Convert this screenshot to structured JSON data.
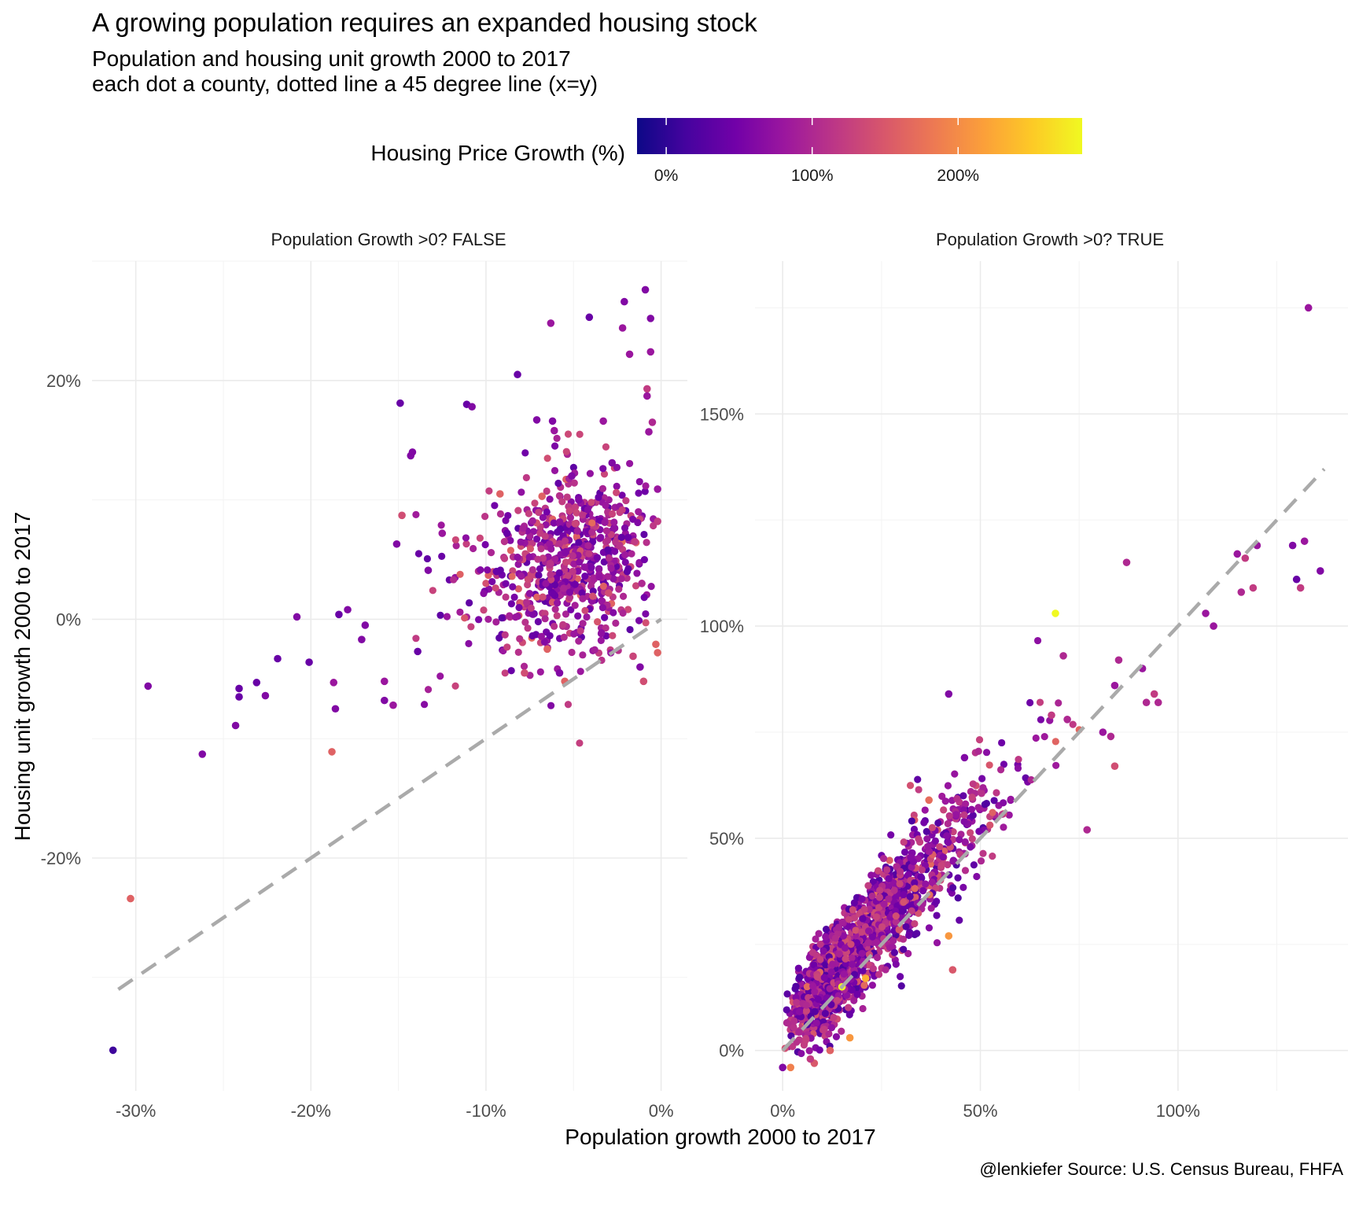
{
  "title": "A growing population requires an expanded housing stock",
  "subtitle_line1": "Population and housing unit growth 2000 to 2017",
  "subtitle_line2": "each dot a county, dotted line a 45 degree line (x=y)",
  "caption": "@lenkiefer Source: U.S. Census Bureau, FHFA",
  "legend": {
    "title": "Housing Price Growth (%)",
    "ticks": [
      "0%",
      "100%",
      "200%"
    ],
    "tick_values": [
      0,
      100,
      200
    ],
    "range": [
      -20,
      285
    ],
    "colormap": "plasma",
    "stops": [
      "#0d0887",
      "#46039f",
      "#7201a8",
      "#9c179e",
      "#bd3786",
      "#d8576b",
      "#ed7953",
      "#fb9f3a",
      "#fdca26",
      "#f0f921"
    ]
  },
  "chart_data": [
    {
      "type": "scatter",
      "panel": "Population Growth >0? FALSE",
      "xlabel": "Population growth 2000 to 2017",
      "ylabel": "Housing unit growth 2000 to 2017",
      "xlim": [
        -0.325,
        0.015
      ],
      "ylim": [
        -0.395,
        0.3
      ],
      "x_ticks": [
        -0.3,
        -0.2,
        -0.1,
        0.0
      ],
      "x_tick_labels": [
        "-30%",
        "-20%",
        "-10%",
        "0%"
      ],
      "y_ticks": [
        -0.2,
        0.0,
        0.2
      ],
      "y_tick_labels": [
        "-20%",
        "0%",
        "20%"
      ],
      "reference_line": {
        "label": "x=y",
        "from": [
          -0.31,
          -0.31
        ],
        "to": [
          0.0,
          0.0
        ]
      },
      "points": [
        {
          "x": -0.313,
          "y": -0.361,
          "c": 10
        },
        {
          "x": -0.303,
          "y": -0.234,
          "c": 160
        },
        {
          "x": -0.293,
          "y": -0.056,
          "c": 60
        },
        {
          "x": -0.262,
          "y": -0.113,
          "c": 60
        },
        {
          "x": -0.243,
          "y": -0.089,
          "c": 60
        },
        {
          "x": -0.241,
          "y": -0.065,
          "c": 40
        },
        {
          "x": -0.241,
          "y": -0.058,
          "c": 40
        },
        {
          "x": -0.231,
          "y": -0.053,
          "c": 40
        },
        {
          "x": -0.226,
          "y": -0.064,
          "c": 60
        },
        {
          "x": -0.219,
          "y": -0.033,
          "c": 40
        },
        {
          "x": -0.208,
          "y": 0.002,
          "c": 60
        },
        {
          "x": -0.201,
          "y": -0.036,
          "c": 40
        },
        {
          "x": -0.188,
          "y": -0.111,
          "c": 160
        },
        {
          "x": -0.187,
          "y": -0.053,
          "c": 80
        },
        {
          "x": -0.186,
          "y": -0.075,
          "c": 60
        },
        {
          "x": -0.184,
          "y": 0.004,
          "c": 40
        },
        {
          "x": -0.179,
          "y": 0.008,
          "c": 60
        },
        {
          "x": -0.171,
          "y": -0.017,
          "c": 60
        },
        {
          "x": -0.169,
          "y": -0.005,
          "c": 60
        },
        {
          "x": -0.158,
          "y": -0.068,
          "c": 60
        },
        {
          "x": -0.158,
          "y": -0.052,
          "c": 80
        },
        {
          "x": -0.153,
          "y": -0.072,
          "c": 80
        },
        {
          "x": -0.151,
          "y": 0.063,
          "c": 60
        },
        {
          "x": -0.149,
          "y": 0.181,
          "c": 40
        },
        {
          "x": -0.148,
          "y": 0.087,
          "c": 140
        },
        {
          "x": -0.143,
          "y": 0.137,
          "c": 60
        },
        {
          "x": -0.142,
          "y": 0.14,
          "c": 60
        },
        {
          "x": -0.139,
          "y": -0.027,
          "c": 40
        },
        {
          "x": -0.133,
          "y": 0.041,
          "c": 60
        },
        {
          "x": -0.125,
          "y": 0.072,
          "c": 80
        },
        {
          "x": -0.111,
          "y": 0.18,
          "c": 40
        },
        {
          "x": -0.108,
          "y": 0.178,
          "c": 60
        },
        {
          "x": -0.094,
          "y": 0.04,
          "c": 40
        },
        {
          "x": -0.092,
          "y": 0.105,
          "c": 160
        },
        {
          "x": -0.088,
          "y": 0.072,
          "c": 40
        },
        {
          "x": -0.082,
          "y": 0.205,
          "c": 40
        },
        {
          "x": -0.071,
          "y": 0.167,
          "c": 60
        },
        {
          "x": -0.068,
          "y": 0.103,
          "c": 160
        },
        {
          "x": -0.063,
          "y": 0.248,
          "c": 80
        },
        {
          "x": -0.062,
          "y": 0.166,
          "c": 60
        },
        {
          "x": -0.061,
          "y": 0.158,
          "c": 80
        },
        {
          "x": -0.051,
          "y": 0.12,
          "c": 60
        },
        {
          "x": -0.049,
          "y": 0.08,
          "c": 130
        },
        {
          "x": -0.047,
          "y": 0.1,
          "c": 60
        },
        {
          "x": -0.041,
          "y": 0.253,
          "c": 40
        },
        {
          "x": -0.033,
          "y": 0.166,
          "c": 80
        },
        {
          "x": -0.028,
          "y": 0.131,
          "c": 60
        },
        {
          "x": -0.021,
          "y": 0.266,
          "c": 60
        },
        {
          "x": -0.022,
          "y": 0.244,
          "c": 80
        },
        {
          "x": -0.018,
          "y": 0.222,
          "c": 80
        },
        {
          "x": -0.015,
          "y": 0.065,
          "c": 120
        },
        {
          "x": -0.012,
          "y": -0.04,
          "c": 60
        },
        {
          "x": -0.011,
          "y": 0.03,
          "c": 100
        },
        {
          "x": -0.009,
          "y": 0.276,
          "c": 60
        },
        {
          "x": -0.008,
          "y": 0.193,
          "c": 120
        },
        {
          "x": -0.008,
          "y": 0.187,
          "c": 80
        },
        {
          "x": -0.007,
          "y": 0.157,
          "c": 80
        },
        {
          "x": -0.006,
          "y": 0.252,
          "c": 60
        },
        {
          "x": -0.006,
          "y": 0.224,
          "c": 80
        },
        {
          "x": -0.005,
          "y": 0.165,
          "c": 100
        },
        {
          "x": -0.002,
          "y": 0.109,
          "c": 80
        },
        {
          "x": -0.002,
          "y": 0.082,
          "c": 120
        },
        {
          "x": -0.003,
          "y": -0.021,
          "c": 160
        },
        {
          "x": -0.002,
          "y": -0.028,
          "c": 160
        },
        {
          "x": -0.01,
          "y": -0.052,
          "c": 140
        },
        {
          "x": -0.016,
          "y": -0.031,
          "c": 130
        },
        {
          "x": -0.03,
          "y": 0.022,
          "c": 140
        },
        {
          "x": -0.058,
          "y": -0.045,
          "c": 60
        },
        {
          "x": -0.055,
          "y": -0.052,
          "c": 160
        },
        {
          "x": -0.078,
          "y": -0.045,
          "c": 140
        },
        {
          "x": -0.065,
          "y": -0.025,
          "c": 160
        }
      ],
      "cluster": {
        "x_range": [
          -0.14,
          -0.001
        ],
        "y_range": [
          -0.05,
          0.15
        ],
        "density_peak": [
          -0.02,
          0.05
        ],
        "count": 700,
        "color_range": [
          30,
          170
        ]
      }
    },
    {
      "type": "scatter",
      "panel": "Population Growth >0? TRUE",
      "xlabel": "Population growth 2000 to 2017",
      "ylabel": "Housing unit growth 2000 to 2017",
      "xlim": [
        -0.07,
        1.43
      ],
      "ylim": [
        -0.095,
        1.86
      ],
      "x_ticks": [
        0.0,
        0.5,
        1.0
      ],
      "x_tick_labels": [
        "0%",
        "50%",
        "100%"
      ],
      "y_ticks": [
        0.0,
        0.5,
        1.0,
        1.5
      ],
      "y_tick_labels": [
        "0%",
        "50%",
        "100%",
        "150%"
      ],
      "reference_line": {
        "label": "x=y",
        "from": [
          0.0,
          0.0
        ],
        "to": [
          1.37,
          1.37
        ]
      },
      "points": [
        {
          "x": 1.33,
          "y": 1.75,
          "c": 80
        },
        {
          "x": 1.36,
          "y": 1.13,
          "c": 60
        },
        {
          "x": 1.32,
          "y": 1.2,
          "c": 80
        },
        {
          "x": 1.29,
          "y": 1.19,
          "c": 60
        },
        {
          "x": 1.3,
          "y": 1.11,
          "c": 40
        },
        {
          "x": 1.31,
          "y": 1.09,
          "c": 120
        },
        {
          "x": 1.2,
          "y": 1.19,
          "c": 80
        },
        {
          "x": 1.17,
          "y": 1.16,
          "c": 120
        },
        {
          "x": 1.15,
          "y": 1.17,
          "c": 80
        },
        {
          "x": 1.16,
          "y": 1.08,
          "c": 100
        },
        {
          "x": 1.19,
          "y": 1.09,
          "c": 120
        },
        {
          "x": 1.07,
          "y": 1.03,
          "c": 80
        },
        {
          "x": 1.09,
          "y": 1.0,
          "c": 80
        },
        {
          "x": 0.87,
          "y": 1.15,
          "c": 100
        },
        {
          "x": 0.69,
          "y": 1.03,
          "c": 285
        },
        {
          "x": 0.71,
          "y": 0.93,
          "c": 100
        },
        {
          "x": 0.91,
          "y": 0.9,
          "c": 80
        },
        {
          "x": 0.85,
          "y": 0.92,
          "c": 100
        },
        {
          "x": 0.94,
          "y": 0.84,
          "c": 120
        },
        {
          "x": 0.95,
          "y": 0.82,
          "c": 100
        },
        {
          "x": 0.92,
          "y": 0.82,
          "c": 100
        },
        {
          "x": 0.84,
          "y": 0.86,
          "c": 80
        },
        {
          "x": 0.42,
          "y": 0.84,
          "c": 60
        },
        {
          "x": 0.46,
          "y": 0.69,
          "c": 60
        },
        {
          "x": 0.77,
          "y": 0.52,
          "c": 100
        },
        {
          "x": 0.83,
          "y": 0.74,
          "c": 100
        },
        {
          "x": 0.84,
          "y": 0.67,
          "c": 140
        },
        {
          "x": 0.81,
          "y": 0.75,
          "c": 80
        },
        {
          "x": 0.72,
          "y": 0.78,
          "c": 100
        },
        {
          "x": 0.68,
          "y": 0.79,
          "c": 120
        },
        {
          "x": 0.15,
          "y": 0.15,
          "c": 285
        },
        {
          "x": 0.17,
          "y": 0.03,
          "c": 210
        },
        {
          "x": 0.21,
          "y": 0.17,
          "c": 230
        },
        {
          "x": 0.43,
          "y": 0.19,
          "c": 150
        },
        {
          "x": 0.42,
          "y": 0.27,
          "c": 210
        },
        {
          "x": 0.37,
          "y": 0.59,
          "c": 170
        },
        {
          "x": 0.02,
          "y": -0.04,
          "c": 190
        },
        {
          "x": 0.08,
          "y": -0.03,
          "c": 150
        },
        {
          "x": 0.07,
          "y": -0.02,
          "c": 120
        },
        {
          "x": 0.12,
          "y": 0.0,
          "c": 160
        },
        {
          "x": 0.0,
          "y": -0.04,
          "c": 60
        }
      ],
      "cluster": {
        "x_range": [
          0.0,
          0.75
        ],
        "y_range": [
          0.0,
          0.75
        ],
        "density_peak": [
          0.1,
          0.18
        ],
        "count": 1500,
        "color_range": [
          20,
          170
        ]
      }
    }
  ],
  "panels": [
    {
      "strip": "Population Growth >0? FALSE"
    },
    {
      "strip": "Population Growth >0? TRUE"
    }
  ]
}
